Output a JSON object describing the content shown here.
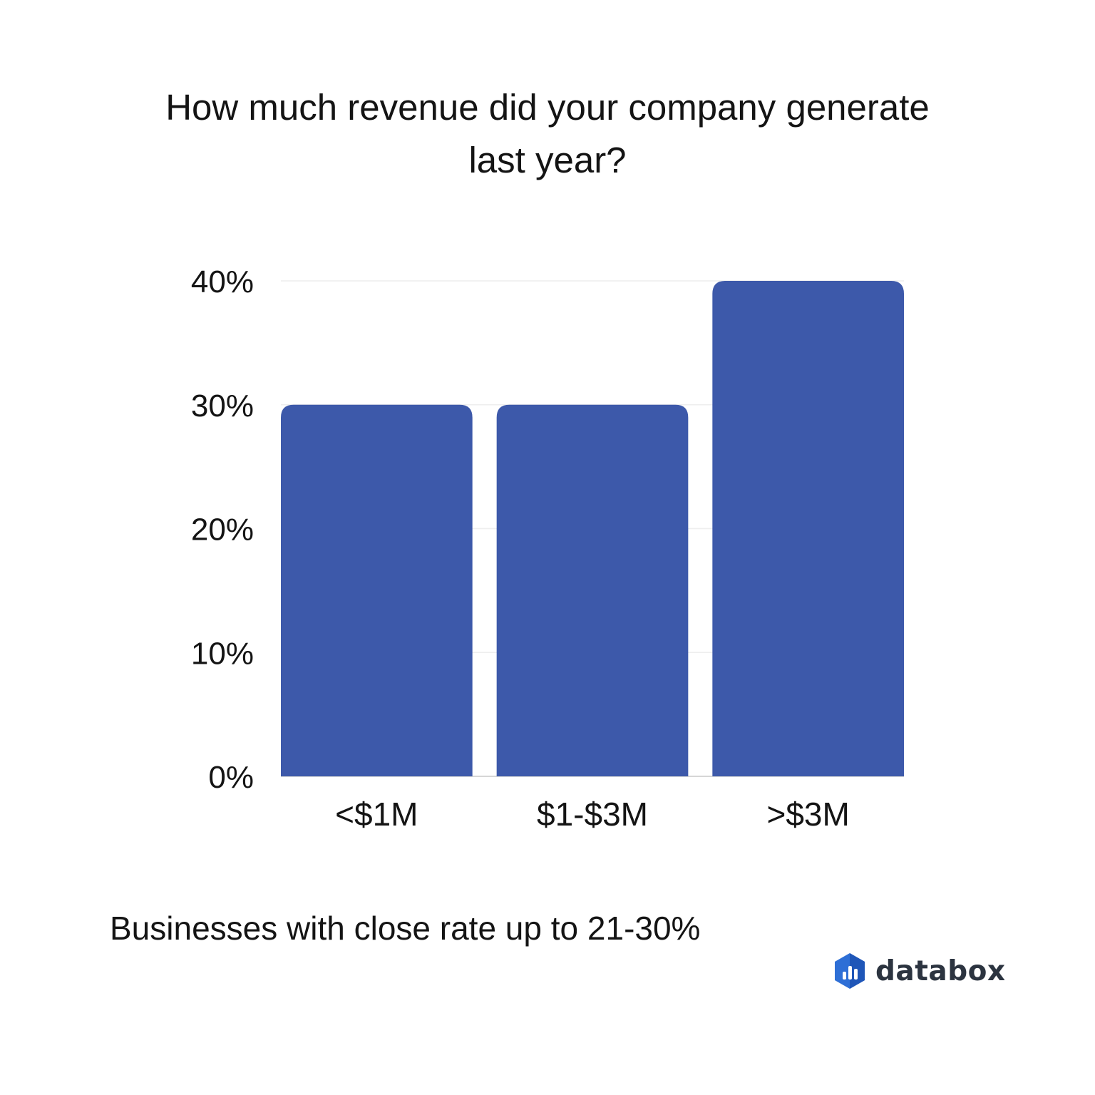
{
  "chart_data": {
    "type": "bar",
    "title_lines": [
      "How much revenue did your company generate",
      "last year?"
    ],
    "categories": [
      "<$1M",
      "$1-$3M",
      ">$3M"
    ],
    "series": [
      {
        "values": [
          30,
          30,
          40
        ]
      }
    ],
    "yticks": [
      0,
      10,
      20,
      30,
      40
    ],
    "ytick_labels": [
      "0%",
      "10%",
      "20%",
      "30%",
      "40%"
    ],
    "ylim": [
      0,
      40
    ],
    "grid": true,
    "bar_color": "#3d59aa",
    "grid_color": "#eeeeee"
  },
  "footer": {
    "note": "Businesses with close rate up to 21-30%"
  },
  "brand": {
    "name": "databox",
    "icon": "databox-logo-icon",
    "mark_color": "#2e6fd6"
  }
}
